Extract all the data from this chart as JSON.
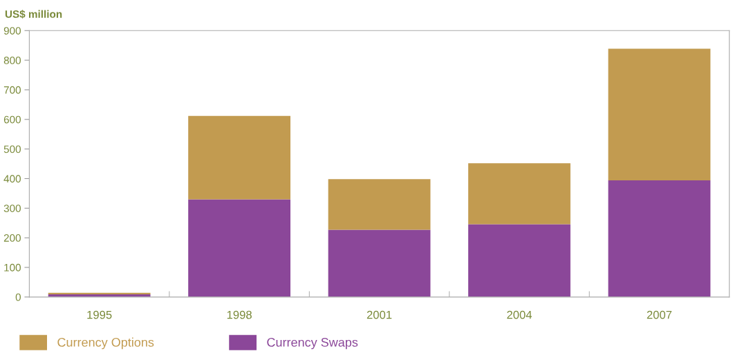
{
  "chart_data": {
    "type": "bar",
    "stacked": true,
    "ylabel": "US$ million",
    "categories": [
      "1995",
      "1998",
      "2001",
      "2004",
      "2007"
    ],
    "series": [
      {
        "name": "Currency Swaps",
        "color": "#8b4799",
        "values": [
          9,
          330,
          227,
          246,
          394
        ]
      },
      {
        "name": "Currency Options",
        "color": "#c29b50",
        "values": [
          5,
          282,
          171,
          206,
          445
        ]
      }
    ],
    "ylim": [
      0,
      900
    ],
    "yticks": [
      0,
      100,
      200,
      300,
      400,
      500,
      600,
      700,
      800,
      900
    ],
    "grid": false,
    "legend": "bottom left"
  }
}
